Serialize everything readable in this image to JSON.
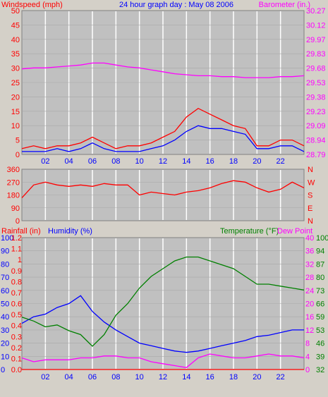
{
  "header": {
    "left": "Windspeed (mph)",
    "center": "24 hour graph day : May 08 2006",
    "right": "Barometer (in.)"
  },
  "colors": {
    "wind": "#ff0000",
    "gust": "#ff0000",
    "avg_wind": "#0000ff",
    "baro": "#ff00ff",
    "dir": "#ff0000",
    "humidity": "#0000ff",
    "temp": "#008000",
    "dew": "#ff00ff",
    "rain": "#ff0000",
    "bg": "#d4d0c8",
    "grid": "#ffffff"
  },
  "x_ticks": [
    "02",
    "04",
    "06",
    "08",
    "10",
    "12",
    "14",
    "16",
    "18",
    "20",
    "22"
  ],
  "panel_wind": {
    "y_ticks_left": [
      "50",
      "45",
      "40",
      "35",
      "30",
      "25",
      "20",
      "15",
      "10",
      "5",
      "0"
    ],
    "y_ticks_right": [
      "30.27",
      "30.12",
      "29.97",
      "29.83",
      "29.68",
      "29.53",
      "29.38",
      "29.23",
      "29.09",
      "28.94",
      "28.79"
    ]
  },
  "panel_dir": {
    "y_ticks_left": [
      "360",
      "270",
      "180",
      "90",
      "0"
    ],
    "y_ticks_right": [
      "N",
      "W",
      "S",
      "E",
      "N"
    ]
  },
  "panel_bottom": {
    "label_rain": "Rainfall (in)",
    "label_hum": "Humidity (%)",
    "label_temp": "Temperature (°F)",
    "label_dew": "Dew Point",
    "y_ticks_hum": [
      "100",
      "90",
      "80",
      "70",
      "60",
      "50",
      "40",
      "30",
      "20",
      "10",
      "0"
    ],
    "y_ticks_rain": [
      "1.2",
      "1.1",
      "1",
      "0.9",
      "0.8",
      "0.7",
      "0.6",
      "0.5",
      "0.4",
      "0.3",
      "0.2",
      "0.1",
      "0.0"
    ],
    "y_ticks_temp_a": [
      "40",
      "36",
      "32",
      "28",
      "24",
      "20",
      "16",
      "12",
      "8",
      "4",
      "0"
    ],
    "y_ticks_temp_b": [
      "100",
      "94",
      "87",
      "80",
      "73",
      "66",
      "59",
      "53",
      "46",
      "39",
      "32"
    ]
  },
  "chart_data": [
    {
      "type": "line",
      "title": "24 hour graph day : May 08 2006",
      "xlabel": "",
      "ylabel": "Windspeed (mph)",
      "ylim": [
        0,
        50
      ],
      "y2label": "Barometer (in.)",
      "y2lim": [
        28.79,
        30.27
      ],
      "x": [
        0,
        1,
        2,
        3,
        4,
        5,
        6,
        7,
        8,
        9,
        10,
        11,
        12,
        13,
        14,
        15,
        16,
        17,
        18,
        19,
        20,
        21,
        22,
        23,
        24
      ],
      "series": [
        {
          "name": "Windspeed (mph)",
          "axis": "left",
          "color": "#ff0000",
          "values": [
            2,
            3,
            2,
            3,
            3,
            4,
            6,
            4,
            2,
            3,
            3,
            4,
            6,
            8,
            13,
            16,
            14,
            12,
            10,
            9,
            3,
            3,
            5,
            5,
            3
          ]
        },
        {
          "name": "",
          "axis": "left",
          "color": "#0000ff",
          "values": [
            1,
            1,
            1,
            2,
            1,
            2,
            4,
            2,
            1,
            1,
            1,
            2,
            3,
            5,
            8,
            10,
            9,
            9,
            8,
            7,
            2,
            2,
            3,
            3,
            1
          ]
        },
        {
          "name": "Barometer (in.)",
          "axis": "right",
          "color": "#ff00ff",
          "values": [
            29.67,
            29.68,
            29.68,
            29.69,
            29.7,
            29.71,
            29.73,
            29.73,
            29.71,
            29.69,
            29.68,
            29.66,
            29.64,
            29.62,
            29.61,
            29.6,
            29.6,
            29.59,
            29.59,
            29.58,
            29.58,
            29.58,
            29.59,
            29.59,
            29.6
          ]
        }
      ]
    },
    {
      "type": "line",
      "ylabel": "Wind direction",
      "ylim": [
        0,
        360
      ],
      "x": [
        0,
        1,
        2,
        3,
        4,
        5,
        6,
        7,
        8,
        9,
        10,
        11,
        12,
        13,
        14,
        15,
        16,
        17,
        18,
        19,
        20,
        21,
        22,
        23,
        24
      ],
      "series": [
        {
          "name": "",
          "color": "#ff0000",
          "values": [
            160,
            250,
            270,
            250,
            240,
            250,
            240,
            260,
            250,
            250,
            180,
            200,
            190,
            180,
            200,
            210,
            230,
            260,
            280,
            270,
            230,
            200,
            220,
            270,
            230
          ]
        }
      ]
    },
    {
      "type": "line",
      "xlabel": "",
      "ylim": [
        0,
        100
      ],
      "x": [
        0,
        1,
        2,
        3,
        4,
        5,
        6,
        7,
        8,
        9,
        10,
        11,
        12,
        13,
        14,
        15,
        16,
        17,
        18,
        19,
        20,
        21,
        22,
        23,
        24
      ],
      "series": [
        {
          "name": "Humidity (%)",
          "axis": "humidity",
          "color": "#0000ff",
          "values": [
            35,
            40,
            42,
            47,
            50,
            56,
            44,
            36,
            30,
            25,
            20,
            18,
            16,
            14,
            13,
            14,
            16,
            18,
            20,
            22,
            25,
            26,
            28,
            30,
            30
          ]
        },
        {
          "name": "Temperature (°F)",
          "axis": "temp",
          "color": "#008000",
          "values": [
            59,
            57,
            54,
            55,
            52,
            50,
            44,
            50,
            60,
            66,
            74,
            80,
            84,
            88,
            90,
            90,
            88,
            86,
            84,
            80,
            76,
            76,
            75,
            74,
            73
          ]
        },
        {
          "name": "Dew Point",
          "axis": "temp",
          "color": "#ff00ff",
          "values": [
            38,
            36,
            37,
            37,
            37,
            38,
            38,
            39,
            39,
            38,
            38,
            36,
            35,
            34,
            33,
            38,
            40,
            39,
            38,
            38,
            39,
            40,
            39,
            39,
            38
          ]
        },
        {
          "name": "Rainfall (in)",
          "axis": "rain",
          "color": "#ff0000",
          "values": [
            0,
            0,
            0,
            0,
            0,
            0,
            0,
            0,
            0,
            0,
            0,
            0,
            0,
            0,
            0,
            0,
            0,
            0,
            0,
            0,
            0,
            0,
            0,
            0,
            0
          ]
        }
      ]
    }
  ]
}
